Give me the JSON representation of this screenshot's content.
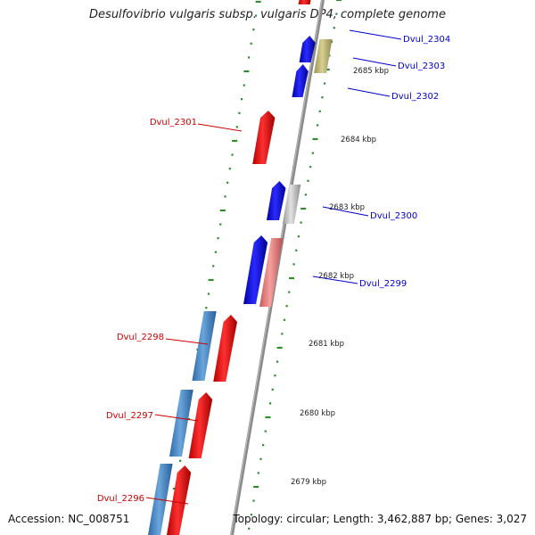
{
  "title": "Desulfovibrio vulgaris subsp. vulgaris DP4, complete genome",
  "footer": {
    "accession": "Accession: NC_008751",
    "summary": "Topology: circular; Length: 3,462,887 bp; Genes: 3,027"
  },
  "colors": {
    "backbone": "#8a8a8a",
    "tick": "#2e8b2e",
    "forward_label": "#0000cc",
    "reverse_label": "#cc0000",
    "red": "#ff1a1a",
    "blue": "#1a1aff",
    "steel": "#4f8fcf",
    "olive": "#c8c080",
    "gray": "#c4c4c4",
    "pink": "#f08080"
  },
  "scale_labels": [
    "2685 kbp",
    "2684 kbp",
    "2683 kbp",
    "2682 kbp",
    "2681 kbp",
    "2680 kbp",
    "2679 kbp"
  ],
  "genes": [
    {
      "label": "Dvul_2304",
      "side": "right"
    },
    {
      "label": "Dvul_2303",
      "side": "right"
    },
    {
      "label": "Dvul_2302",
      "side": "right"
    },
    {
      "label": "Dvul_2301",
      "side": "left"
    },
    {
      "label": "Dvul_2300",
      "side": "right"
    },
    {
      "label": "Dvul_2299",
      "side": "right"
    },
    {
      "label": "Dvul_2298",
      "side": "left"
    },
    {
      "label": "Dvul_2297",
      "side": "left"
    },
    {
      "label": "Dvul_2296",
      "side": "left"
    }
  ]
}
